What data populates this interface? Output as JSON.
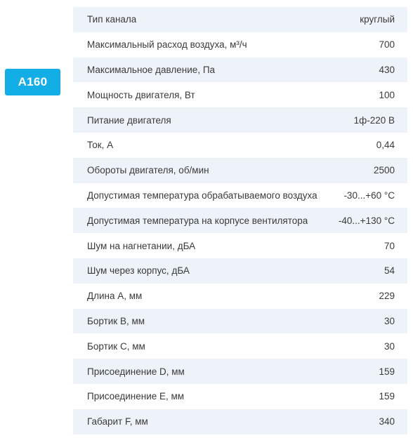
{
  "model": "A160",
  "specs": [
    {
      "label": "Тип канала",
      "value": "круглый"
    },
    {
      "label": "Максимальный расход воздуха, м³/ч",
      "value": "700"
    },
    {
      "label": "Максимальное давление, Па",
      "value": "430"
    },
    {
      "label": "Мощность двигателя, Вт",
      "value": "100"
    },
    {
      "label": "Питание двигателя",
      "value": "1ф-220 В"
    },
    {
      "label": "Ток, А",
      "value": "0,44"
    },
    {
      "label": "Обороты двигателя, об/мин",
      "value": "2500"
    },
    {
      "label": "Допустимая температура обрабатываемого воздуха",
      "value": "-30...+60 °C"
    },
    {
      "label": "Допустимая температура на корпусе вентилятора",
      "value": "-40...+130 °C"
    },
    {
      "label": "Шум на нагнетании, дБА",
      "value": "70"
    },
    {
      "label": "Шум через корпус, дБА",
      "value": "54"
    },
    {
      "label": "Длина А, мм",
      "value": "229"
    },
    {
      "label": "Бортик B, мм",
      "value": "30"
    },
    {
      "label": "Бортик C, мм",
      "value": "30"
    },
    {
      "label": "Присоединение D, мм",
      "value": "159"
    },
    {
      "label": "Присоединение E, мм",
      "value": "159"
    },
    {
      "label": "Габарит F, мм",
      "value": "340"
    }
  ]
}
